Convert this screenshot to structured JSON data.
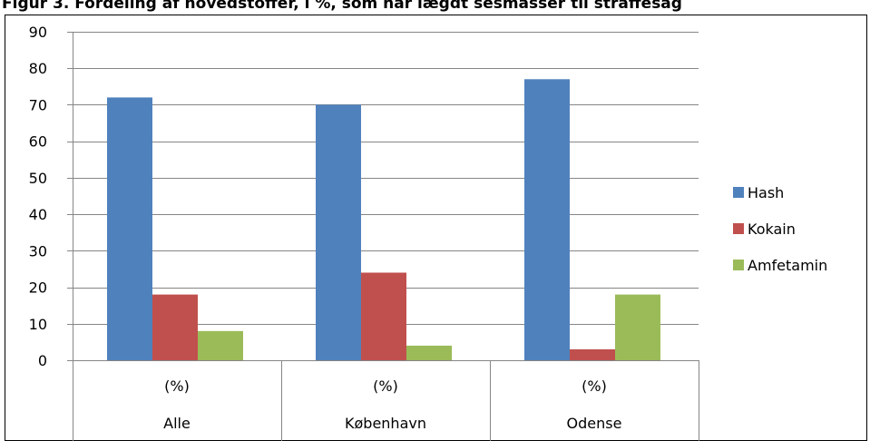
{
  "chart_data": {
    "type": "bar",
    "title": "Figur 3. Fordeling af hovedstoffer, i %, som har lægdt sesmasser til straffesag",
    "xlabel": "",
    "ylabel": "",
    "ylim": [
      0,
      90
    ],
    "yticks": [
      0,
      10,
      20,
      30,
      40,
      50,
      60,
      70,
      80,
      90
    ],
    "grid": true,
    "legend": "right",
    "categories": [
      "Alle",
      "København",
      "Odense"
    ],
    "category_units": [
      "(%)",
      "(%)",
      "(%)"
    ],
    "series": [
      {
        "name": "Hash",
        "color": "#4F81BD",
        "values": [
          72,
          70,
          77
        ]
      },
      {
        "name": "Kokain",
        "color": "#C0504D",
        "values": [
          18,
          24,
          3
        ]
      },
      {
        "name": "Amfetamin",
        "color": "#9BBB59",
        "values": [
          8,
          4,
          18
        ]
      }
    ]
  }
}
